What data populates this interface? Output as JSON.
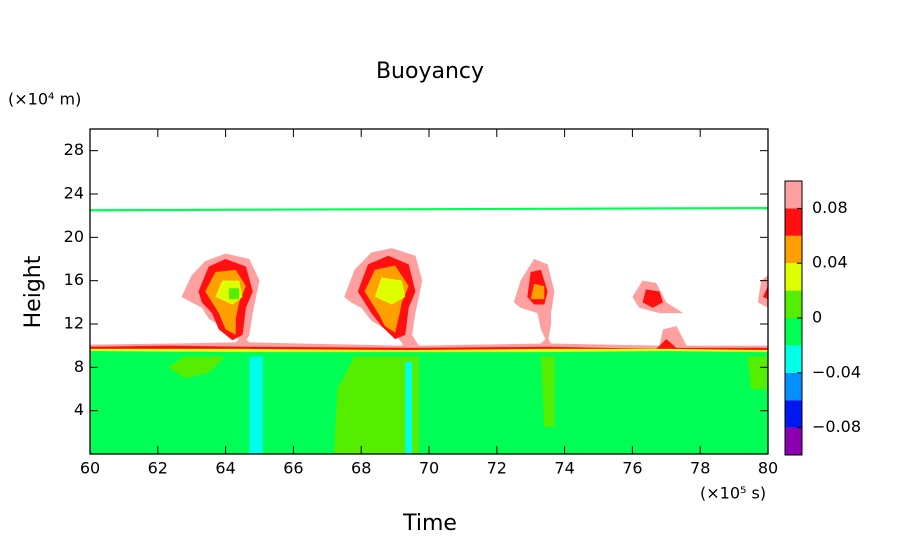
{
  "chart_data": {
    "type": "contour",
    "title": "Buoyancy",
    "xlabel": "Time",
    "ylabel": "Height",
    "x_unit": "(×10⁵ s)",
    "y_unit": "(×10⁴ m)",
    "xlim": [
      60,
      80
    ],
    "xticks": [
      60,
      62,
      64,
      66,
      68,
      70,
      72,
      74,
      76,
      78,
      80
    ],
    "ylim": [
      0,
      30
    ],
    "yticks": [
      4,
      8,
      12,
      16,
      20,
      24,
      28
    ],
    "levels": [
      -0.1,
      -0.08,
      -0.06,
      -0.04,
      -0.02,
      0,
      0.02,
      0.04,
      0.06,
      0.08,
      0.1
    ],
    "colors": [
      "#8a00b0",
      "#0018f0",
      "#0090ff",
      "#00ffe8",
      "#00ff55",
      "#55ee00",
      "#ddff00",
      "#ffa000",
      "#ff1010",
      "#ffa0a0"
    ],
    "cticks": [
      {
        "value": -0.08,
        "label": "−0.08"
      },
      {
        "value": -0.04,
        "label": "−0.04"
      },
      0,
      0.04,
      0.08
    ],
    "regions": [
      {
        "level": 0.09,
        "points": [
          [
            60,
            0
          ],
          [
            80,
            0
          ],
          [
            80,
            10
          ],
          [
            77.6,
            10
          ],
          [
            77.3,
            11.8
          ],
          [
            76.9,
            11.5
          ],
          [
            76.8,
            10
          ],
          [
            73.6,
            10.2
          ],
          [
            73.5,
            10.8
          ],
          [
            73.3,
            10.2
          ],
          [
            69.7,
            10
          ],
          [
            69.5,
            11
          ],
          [
            69.2,
            10
          ],
          [
            64.7,
            10.3
          ],
          [
            64.5,
            10.9
          ],
          [
            64.3,
            10.3
          ],
          [
            62.5,
            10.2
          ],
          [
            60,
            10.1
          ]
        ]
      },
      {
        "level": 0.07,
        "points": [
          [
            60,
            0
          ],
          [
            80,
            0
          ],
          [
            80,
            9.8
          ],
          [
            77.3,
            9.8
          ],
          [
            77,
            10.6
          ],
          [
            76.7,
            9.7
          ],
          [
            73.5,
            9.9
          ],
          [
            69.5,
            9.8
          ],
          [
            64.6,
            9.9
          ],
          [
            62.3,
            10
          ],
          [
            60,
            9.9
          ]
        ]
      },
      {
        "level": 0.03,
        "points": [
          [
            60,
            0
          ],
          [
            80,
            0
          ],
          [
            80,
            9.6
          ],
          [
            77,
            9.7
          ],
          [
            73.4,
            9.7
          ],
          [
            69.4,
            9.6
          ],
          [
            64.6,
            9.7
          ],
          [
            60,
            9.7
          ]
        ]
      },
      {
        "level": -0.01,
        "points": [
          [
            60,
            0
          ],
          [
            80,
            0
          ],
          [
            80,
            9.4
          ],
          [
            77,
            9.5
          ],
          [
            73.4,
            9.4
          ],
          [
            69.4,
            9.4
          ],
          [
            64.6,
            9.4
          ],
          [
            60,
            9.5
          ]
        ]
      },
      {
        "level": 0.01,
        "points": [
          [
            67.2,
            0
          ],
          [
            69.7,
            0
          ],
          [
            69.7,
            9
          ],
          [
            67.8,
            9
          ],
          [
            67.3,
            6
          ]
        ]
      },
      {
        "level": 0.01,
        "points": [
          [
            62.3,
            8
          ],
          [
            62.8,
            9
          ],
          [
            64,
            9
          ],
          [
            63.5,
            7.5
          ],
          [
            62.8,
            7
          ]
        ]
      },
      {
        "level": 0.01,
        "points": [
          [
            73.4,
            2.5
          ],
          [
            73.7,
            2.5
          ],
          [
            73.7,
            9
          ],
          [
            73.3,
            9
          ]
        ]
      },
      {
        "level": 0.01,
        "points": [
          [
            79.5,
            6
          ],
          [
            80,
            6
          ],
          [
            80,
            9
          ],
          [
            79.4,
            9
          ]
        ]
      },
      {
        "level": -0.03,
        "points": [
          [
            64.7,
            0
          ],
          [
            65.1,
            0
          ],
          [
            65.1,
            9
          ],
          [
            64.7,
            9
          ]
        ]
      },
      {
        "level": -0.03,
        "points": [
          [
            69.3,
            0
          ],
          [
            69.5,
            0
          ],
          [
            69.5,
            8.5
          ],
          [
            69.3,
            8.5
          ]
        ]
      },
      {
        "level": 0.09,
        "points": [
          [
            62.7,
            14.5
          ],
          [
            63,
            16.5
          ],
          [
            63.4,
            17.8
          ],
          [
            64,
            18.5
          ],
          [
            64.7,
            18
          ],
          [
            65,
            16
          ],
          [
            64.8,
            13
          ],
          [
            64.7,
            11
          ],
          [
            64.5,
            9.9
          ],
          [
            64.3,
            11
          ],
          [
            63.5,
            12.5
          ],
          [
            63.3,
            13.5
          ],
          [
            63,
            14
          ]
        ]
      },
      {
        "level": 0.07,
        "points": [
          [
            63.2,
            15
          ],
          [
            63.5,
            17.3
          ],
          [
            64,
            18
          ],
          [
            64.6,
            17.3
          ],
          [
            64.8,
            15
          ],
          [
            64.6,
            13.5
          ],
          [
            64.5,
            11
          ],
          [
            64.2,
            10.5
          ],
          [
            63.8,
            11.5
          ],
          [
            63.6,
            13
          ],
          [
            63.3,
            14
          ]
        ]
      },
      {
        "level": 0.05,
        "points": [
          [
            63.4,
            15
          ],
          [
            63.7,
            16.8
          ],
          [
            64.3,
            17
          ],
          [
            64.6,
            15.5
          ],
          [
            64.4,
            14
          ],
          [
            64.3,
            12.5
          ],
          [
            64.3,
            11
          ],
          [
            64,
            11.5
          ],
          [
            63.8,
            13
          ],
          [
            63.6,
            14
          ]
        ]
      },
      {
        "level": 0.03,
        "points": [
          [
            63.7,
            14.5
          ],
          [
            63.9,
            16
          ],
          [
            64.4,
            16
          ],
          [
            64.5,
            14.5
          ],
          [
            64.2,
            13.8
          ]
        ]
      },
      {
        "level": 0.01,
        "points": [
          [
            64.1,
            14.3
          ],
          [
            64.4,
            14.3
          ],
          [
            64.4,
            15.3
          ],
          [
            64.1,
            15.3
          ]
        ]
      },
      {
        "level": 0.09,
        "points": [
          [
            67.5,
            14.5
          ],
          [
            67.8,
            17
          ],
          [
            68.3,
            18.6
          ],
          [
            68.9,
            19
          ],
          [
            69.6,
            18.3
          ],
          [
            69.8,
            16
          ],
          [
            69.6,
            13
          ],
          [
            69.5,
            11
          ],
          [
            69.3,
            9.9
          ],
          [
            69,
            11
          ],
          [
            68.3,
            12.3
          ],
          [
            68,
            13.5
          ],
          [
            67.7,
            14
          ]
        ]
      },
      {
        "level": 0.07,
        "points": [
          [
            67.9,
            15
          ],
          [
            68.2,
            17.5
          ],
          [
            68.8,
            18.3
          ],
          [
            69.4,
            17.5
          ],
          [
            69.6,
            15
          ],
          [
            69.4,
            13.5
          ],
          [
            69.3,
            11
          ],
          [
            69,
            10.6
          ],
          [
            68.6,
            11.8
          ],
          [
            68.3,
            13
          ],
          [
            68.1,
            14
          ]
        ]
      },
      {
        "level": 0.05,
        "points": [
          [
            68.1,
            15
          ],
          [
            68.4,
            17
          ],
          [
            69,
            17.4
          ],
          [
            69.4,
            15.5
          ],
          [
            69.2,
            14
          ],
          [
            69.1,
            12.5
          ],
          [
            69,
            11.2
          ],
          [
            68.7,
            11.8
          ],
          [
            68.5,
            13
          ],
          [
            68.3,
            14
          ]
        ]
      },
      {
        "level": 0.03,
        "points": [
          [
            68.4,
            14.5
          ],
          [
            68.6,
            16.3
          ],
          [
            69.2,
            16
          ],
          [
            69.3,
            14.5
          ],
          [
            68.9,
            13.8
          ]
        ]
      },
      {
        "level": 0.09,
        "points": [
          [
            72.5,
            14
          ],
          [
            72.7,
            16
          ],
          [
            73.1,
            18
          ],
          [
            73.5,
            17.5
          ],
          [
            73.7,
            15
          ],
          [
            73.6,
            13
          ],
          [
            73.6,
            12
          ],
          [
            73.5,
            10.2
          ],
          [
            73.3,
            11.5
          ],
          [
            73.2,
            13
          ],
          [
            72.7,
            13.5
          ]
        ]
      },
      {
        "level": 0.07,
        "points": [
          [
            72.9,
            14.5
          ],
          [
            73,
            16.8
          ],
          [
            73.3,
            17
          ],
          [
            73.5,
            15
          ],
          [
            73.4,
            13.8
          ],
          [
            73.1,
            13.8
          ]
        ]
      },
      {
        "level": 0.05,
        "points": [
          [
            73,
            14.3
          ],
          [
            73.1,
            15.7
          ],
          [
            73.4,
            15.5
          ],
          [
            73.4,
            14.3
          ]
        ]
      },
      {
        "level": 0.09,
        "points": [
          [
            76,
            14.5
          ],
          [
            76.3,
            16
          ],
          [
            76.7,
            15.8
          ],
          [
            77,
            14
          ],
          [
            77.5,
            13
          ],
          [
            76.8,
            13
          ],
          [
            76.2,
            13.5
          ]
        ]
      },
      {
        "level": 0.07,
        "points": [
          [
            76.3,
            14
          ],
          [
            76.4,
            15.2
          ],
          [
            76.8,
            15
          ],
          [
            76.9,
            14
          ],
          [
            76.6,
            13.5
          ]
        ]
      },
      {
        "level": 0.09,
        "points": [
          [
            79.7,
            14
          ],
          [
            79.8,
            16
          ],
          [
            80,
            16.5
          ],
          [
            80,
            13.5
          ]
        ]
      },
      {
        "level": 0.07,
        "points": [
          [
            79.85,
            14.5
          ],
          [
            80,
            15.5
          ],
          [
            80,
            14.3
          ]
        ]
      },
      {
        "level": -0.01,
        "points": [
          [
            60,
            22.4
          ],
          [
            70,
            22.5
          ],
          [
            80,
            22.6
          ],
          [
            80,
            22.8
          ],
          [
            70,
            22.7
          ],
          [
            60,
            22.6
          ]
        ]
      }
    ]
  }
}
